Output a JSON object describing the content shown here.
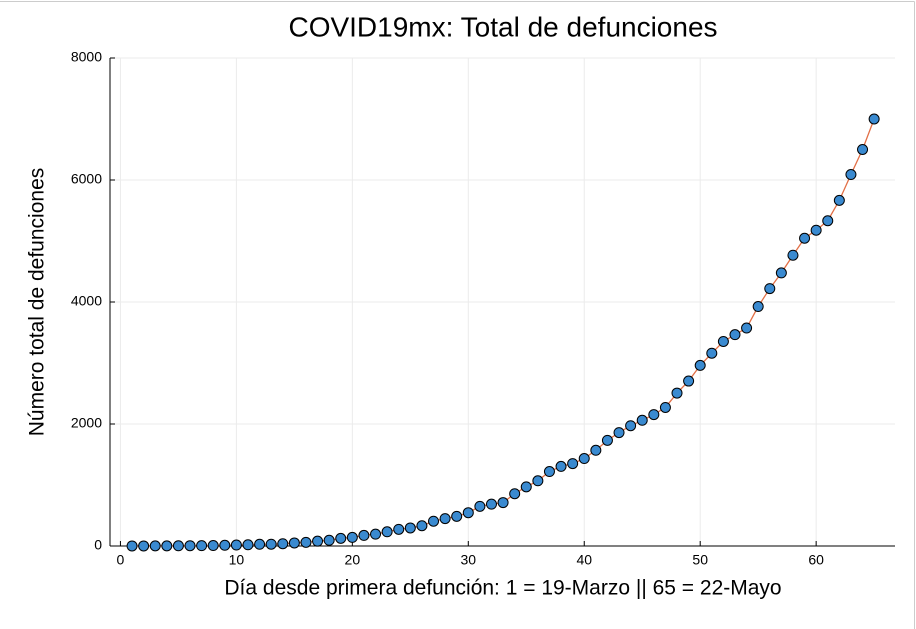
{
  "chart_data": {
    "type": "scatter",
    "title": "COVID19mx: Total de defunciones",
    "xlabel": "Día desde primera defunción: 1 = 19-Marzo || 65 = 22-Mayo",
    "ylabel": "Número total de defunciones",
    "xlim": [
      -0.9,
      66.8
    ],
    "ylim": [
      0,
      8000
    ],
    "xticks": [
      0,
      10,
      20,
      30,
      40,
      50,
      60
    ],
    "yticks": [
      0,
      2000,
      4000,
      6000,
      8000
    ],
    "grid": true,
    "series": [
      {
        "line_color": "#e26f46",
        "marker_color": "#3a8ad0",
        "x": [
          1,
          2,
          3,
          4,
          5,
          6,
          7,
          8,
          9,
          10,
          11,
          12,
          13,
          14,
          15,
          16,
          17,
          18,
          19,
          20,
          21,
          22,
          23,
          24,
          25,
          26,
          27,
          28,
          29,
          30,
          31,
          32,
          33,
          34,
          35,
          36,
          37,
          38,
          39,
          40,
          41,
          42,
          43,
          44,
          45,
          46,
          47,
          48,
          49,
          50,
          51,
          52,
          53,
          54,
          55,
          56,
          57,
          58,
          59,
          60,
          61,
          62,
          63,
          64,
          65
        ],
        "values": [
          1,
          1,
          2,
          2,
          4,
          5,
          6,
          8,
          12,
          16,
          20,
          28,
          29,
          37,
          50,
          60,
          79,
          94,
          125,
          141,
          174,
          194,
          233,
          273,
          296,
          332,
          406,
          449,
          486,
          546,
          650,
          686,
          712,
          857,
          970,
          1069,
          1221,
          1305,
          1351,
          1434,
          1569,
          1732,
          1859,
          1972,
          2061,
          2154,
          2271,
          2507,
          2704,
          2961,
          3160,
          3353,
          3465,
          3573,
          3926,
          4220,
          4477,
          4767,
          5045,
          5177,
          5332,
          5666,
          6090,
          6500,
          7000
        ]
      }
    ]
  }
}
